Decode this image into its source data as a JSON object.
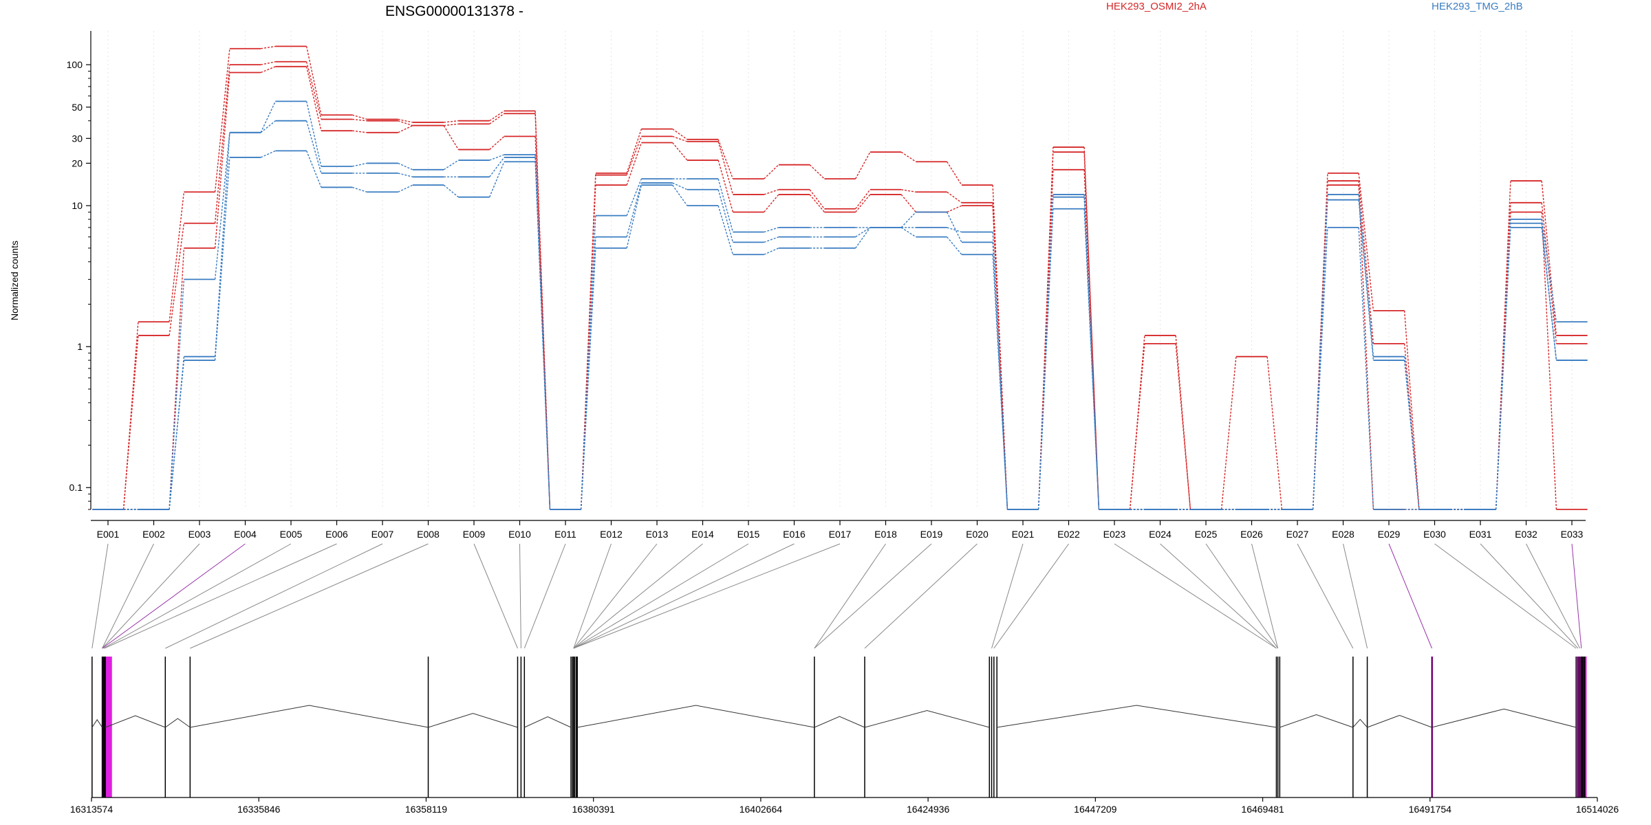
{
  "chart_data": {
    "type": "line",
    "title": "ENSG00000131378 -",
    "ylabel": "Normalized counts",
    "yscale": "log",
    "ylim": [
      0.07,
      150
    ],
    "yticks": [
      0.1,
      1,
      10,
      20,
      30,
      50,
      100
    ],
    "categories": [
      "E001",
      "E002",
      "E003",
      "E004",
      "E005",
      "E006",
      "E007",
      "E008",
      "E009",
      "E010",
      "E011",
      "E012",
      "E013",
      "E014",
      "E015",
      "E016",
      "E017",
      "E018",
      "E019",
      "E020",
      "E021",
      "E022",
      "E023",
      "E024",
      "E025",
      "E026",
      "E027",
      "E028",
      "E029",
      "E030",
      "E031",
      "E032",
      "E033"
    ],
    "groups": [
      {
        "name": "HEK293_OSMI2_2hA",
        "color": "#d62728"
      },
      {
        "name": "HEK293_TMG_2hB",
        "color": "#3a7dc2"
      }
    ],
    "series": [
      {
        "group": 0,
        "values": [
          0.07,
          1.5,
          12.5,
          130,
          135,
          44,
          41,
          39,
          40,
          47,
          0.07,
          17,
          35,
          29.5,
          15.5,
          19.5,
          15.5,
          24,
          20.5,
          14,
          0.07,
          26,
          0.07,
          1.2,
          0.07,
          0.85,
          0.07,
          17,
          1.8,
          0.07,
          0.07,
          15,
          1.2
        ]
      },
      {
        "group": 0,
        "values": [
          0.07,
          1.2,
          7.5,
          100,
          105,
          41,
          40,
          37,
          38,
          45,
          0.07,
          16.5,
          31,
          28.5,
          12,
          13,
          9.5,
          13,
          12.5,
          10.5,
          0.07,
          24,
          0.07,
          1.05,
          0.07,
          0.07,
          0.07,
          15,
          1.05,
          0.07,
          0.07,
          10.5,
          1.05
        ]
      },
      {
        "group": 0,
        "values": [
          0.07,
          0.07,
          5,
          88,
          97,
          34,
          33,
          37,
          25,
          31,
          0.07,
          14,
          28,
          21,
          9,
          12,
          9,
          12,
          9,
          10,
          0.07,
          18,
          0.07,
          0.07,
          0.07,
          0.07,
          0.07,
          14,
          0.07,
          0.07,
          0.07,
          9,
          0.07
        ]
      },
      {
        "group": 1,
        "values": [
          0.07,
          0.07,
          3,
          33,
          55,
          19,
          20,
          18,
          21,
          23,
          0.07,
          8.5,
          15.5,
          15.5,
          6.5,
          7,
          7,
          7,
          7,
          6.5,
          0.07,
          12,
          0.07,
          0.07,
          0.07,
          0.07,
          0.07,
          12,
          0.85,
          0.07,
          0.07,
          8,
          1.5
        ]
      },
      {
        "group": 1,
        "values": [
          0.07,
          0.07,
          0.85,
          33,
          40,
          17,
          17,
          16,
          16,
          22,
          0.07,
          6,
          14.5,
          13,
          5.5,
          6,
          6,
          7,
          9,
          5.5,
          0.07,
          11.5,
          0.07,
          0.07,
          0.07,
          0.07,
          0.07,
          11,
          0.8,
          0.07,
          0.07,
          7.5,
          0.8
        ]
      },
      {
        "group": 1,
        "values": [
          0.07,
          0.07,
          0.8,
          22,
          24.5,
          13.5,
          12.5,
          14,
          11.5,
          20.5,
          0.07,
          5,
          14,
          10,
          4.5,
          5,
          5,
          7,
          6,
          4.5,
          0.07,
          9.5,
          0.07,
          0.07,
          0.07,
          0.07,
          0.07,
          7,
          0.07,
          0.07,
          0.07,
          7,
          0.8
        ]
      }
    ],
    "genomic_axis": {
      "tick_labels": [
        "16313574",
        "16335846",
        "16358119",
        "16380391",
        "16402664",
        "16424936",
        "16447209",
        "16469481",
        "16491754",
        "16514026"
      ],
      "start": 16313574,
      "end": 16514026
    },
    "exons_genomic": [
      16313650,
      16315000,
      16315150,
      16315280,
      16315420,
      16323400,
      16326700,
      16358400,
      16370300,
      16370750,
      16371200,
      16377400,
      16377600,
      16377750,
      16377900,
      16378100,
      16378250,
      16409800,
      16416500,
      16433100,
      16433400,
      16433700,
      16434100,
      16471300,
      16471500,
      16471750,
      16481500,
      16483400,
      16492000,
      16511200,
      16511450,
      16511700,
      16511900,
      16512050,
      16512200,
      16512350
    ],
    "highlighted_exons_genomic": [
      [
        16315000,
        16316300
      ],
      [
        16491950,
        16492150
      ],
      [
        16511300,
        16512600
      ]
    ],
    "colors": {
      "axis": "#000000",
      "connector": "#888888",
      "highlight": "#e11fe1",
      "highlight_connector": "#9933aa",
      "grid": "#e6e6e6"
    }
  }
}
